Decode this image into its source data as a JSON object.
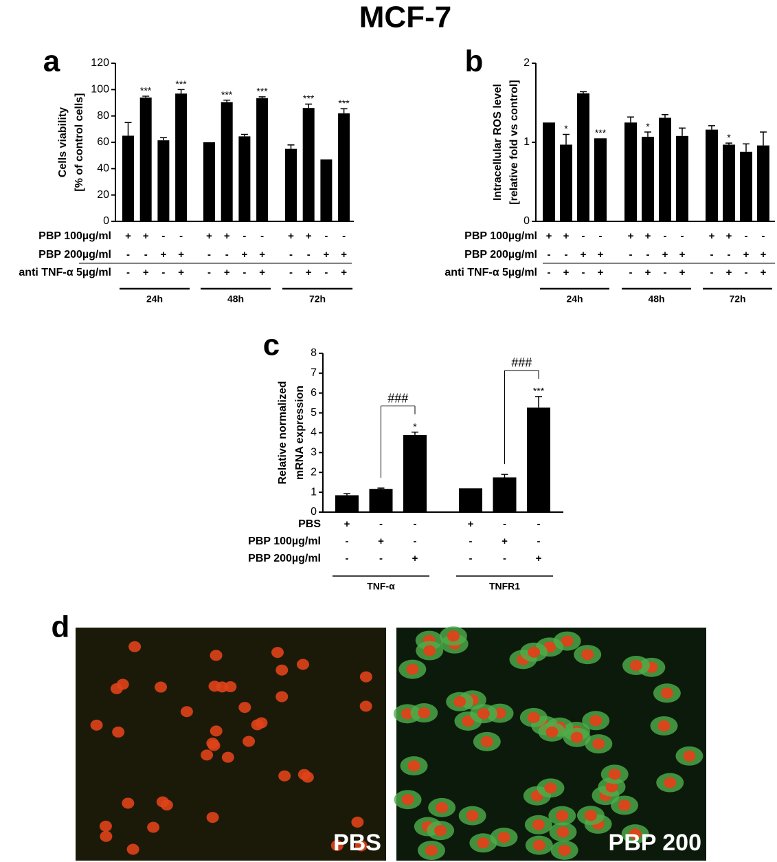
{
  "title": "MCF-7",
  "chart_data": [
    {
      "type": "bar",
      "panel": "a",
      "color": "#000000",
      "ylabel": [
        "Cells viability",
        "[% of control cells]"
      ],
      "ylim": [
        0,
        120
      ],
      "yticks": [
        0,
        20,
        40,
        60,
        80,
        100,
        120
      ],
      "row_labels": [
        "PBP 100µg/ml",
        "PBP 200µg/ml",
        "anti TNF-α 5µg/ml"
      ],
      "groups": [
        {
          "name": "24h",
          "values": [
            65,
            94,
            61.5,
            97
          ],
          "errors": [
            10,
            1,
            2,
            3
          ],
          "annotations": [
            null,
            "***",
            null,
            "***"
          ],
          "conditions": [
            [
              "+",
              "+",
              "-",
              "-"
            ],
            [
              "-",
              "-",
              "+",
              "+"
            ],
            [
              "-",
              "+",
              "-",
              "+"
            ]
          ]
        },
        {
          "name": "48h",
          "values": [
            60,
            90.5,
            64.5,
            93.5
          ],
          "errors": [
            null,
            1.5,
            1.5,
            1
          ],
          "annotations": [
            null,
            "***",
            null,
            "***"
          ],
          "conditions": [
            [
              "+",
              "+",
              "-",
              "-"
            ],
            [
              "-",
              "-",
              "+",
              "+"
            ],
            [
              "-",
              "+",
              "-",
              "+"
            ]
          ]
        },
        {
          "name": "72h",
          "values": [
            55,
            86,
            47,
            82
          ],
          "errors": [
            3,
            3,
            null,
            3.5
          ],
          "annotations": [
            null,
            "***",
            null,
            "***"
          ],
          "conditions": [
            [
              "+",
              "+",
              "-",
              "-"
            ],
            [
              "-",
              "-",
              "+",
              "+"
            ],
            [
              "-",
              "+",
              "-",
              "+"
            ]
          ]
        }
      ]
    },
    {
      "type": "bar",
      "panel": "b",
      "color": "#000000",
      "ylabel": [
        "Intracellular ROS level",
        "[relative fold vs control]"
      ],
      "ylim": [
        0,
        2
      ],
      "yticks": [
        0,
        1,
        2
      ],
      "row_labels": [
        "PBP 100µg/ml",
        "PBP 200µg/ml",
        "anti TNF-α 5µg/ml"
      ],
      "groups": [
        {
          "name": "24h",
          "values": [
            1.25,
            0.97,
            1.62,
            1.05
          ],
          "errors": [
            null,
            0.13,
            0.02,
            null
          ],
          "annotations": [
            null,
            "*",
            null,
            "***"
          ],
          "conditions": [
            [
              "+",
              "+",
              "-",
              "-"
            ],
            [
              "-",
              "-",
              "+",
              "+"
            ],
            [
              "-",
              "+",
              "-",
              "+"
            ]
          ]
        },
        {
          "name": "48h",
          "values": [
            1.25,
            1.07,
            1.31,
            1.08
          ],
          "errors": [
            0.07,
            0.06,
            0.04,
            0.1
          ],
          "annotations": [
            null,
            "*",
            null,
            null
          ],
          "conditions": [
            [
              "+",
              "+",
              "-",
              "-"
            ],
            [
              "-",
              "-",
              "+",
              "+"
            ],
            [
              "-",
              "+",
              "-",
              "+"
            ]
          ]
        },
        {
          "name": "72h",
          "values": [
            1.16,
            0.97,
            0.88,
            0.96
          ],
          "errors": [
            0.05,
            0.02,
            0.1,
            0.17
          ],
          "annotations": [
            null,
            "*",
            null,
            null
          ],
          "conditions": [
            [
              "+",
              "+",
              "-",
              "-"
            ],
            [
              "-",
              "-",
              "+",
              "+"
            ],
            [
              "-",
              "+",
              "-",
              "+"
            ]
          ]
        }
      ]
    },
    {
      "type": "bar",
      "panel": "c",
      "color": "#000000",
      "ylabel": [
        "Relative normalized",
        "mRNA expression"
      ],
      "ylim": [
        0,
        8
      ],
      "yticks": [
        0,
        1,
        2,
        3,
        4,
        5,
        6,
        7,
        8
      ],
      "row_labels": [
        "PBS",
        "PBP 100µg/ml",
        "PBP 200µg/ml"
      ],
      "groups": [
        {
          "name": "TNF-α",
          "values": [
            0.85,
            1.17,
            3.88
          ],
          "errors": [
            0.08,
            0.04,
            0.15
          ],
          "annotations": [
            null,
            null,
            "*"
          ],
          "bracket": "###",
          "conditions": [
            [
              "+",
              "-",
              "-"
            ],
            [
              "-",
              "+",
              "-"
            ],
            [
              "-",
              "-",
              "+"
            ]
          ]
        },
        {
          "name": "TNFR1",
          "values": [
            1.2,
            1.75,
            5.27
          ],
          "errors": [
            null,
            0.15,
            0.55
          ],
          "annotations": [
            null,
            null,
            "***"
          ],
          "bracket": "###",
          "conditions": [
            [
              "+",
              "-",
              "-"
            ],
            [
              "-",
              "+",
              "-"
            ],
            [
              "-",
              "-",
              "+"
            ]
          ]
        }
      ]
    }
  ],
  "panel_d": {
    "panel": "d",
    "images": [
      "PBS",
      "PBP 200"
    ]
  }
}
